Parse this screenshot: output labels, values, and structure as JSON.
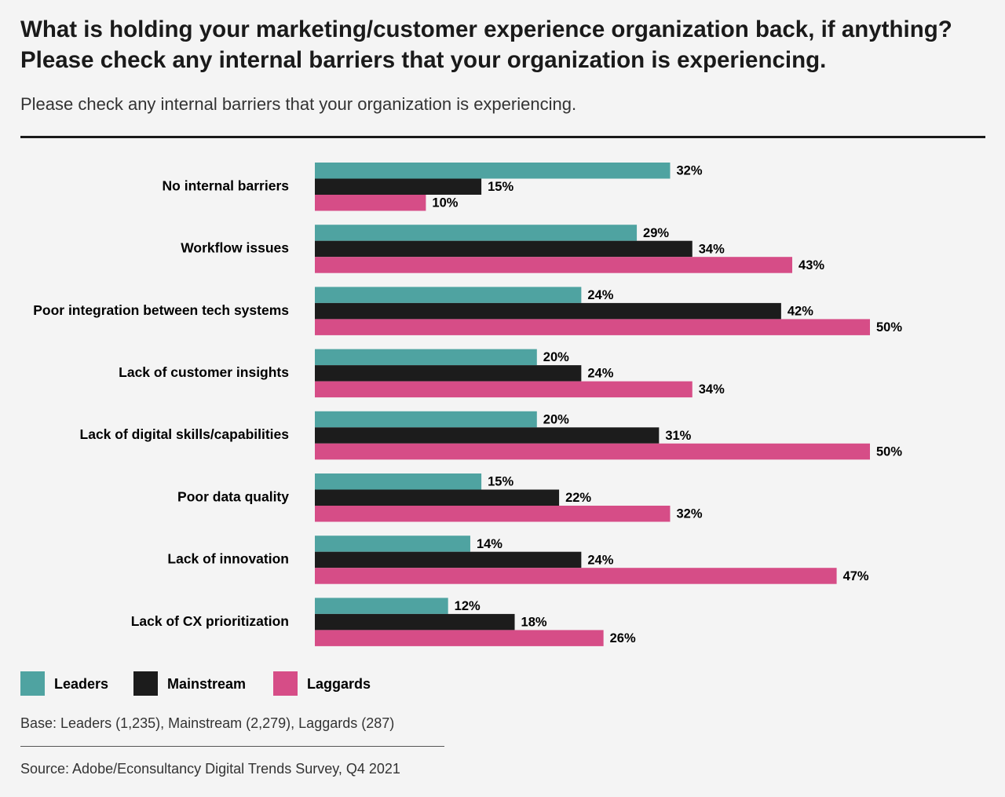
{
  "chart_data": {
    "type": "bar",
    "orientation": "horizontal",
    "title": "What is holding your marketing/customer experience organization back, if anything? Please check any internal barriers that your organization is experiencing.",
    "subtitle": "Please check any internal barriers that your organization is experiencing.",
    "categories": [
      "No internal barriers",
      "Workflow issues",
      "Poor integration between tech systems",
      "Lack of customer insights",
      "Lack of digital skills/capabilities",
      "Poor data quality",
      "Lack of innovation",
      "Lack of CX prioritization"
    ],
    "series": [
      {
        "name": "Leaders",
        "color": "#4fa3a1",
        "values": [
          32,
          29,
          24,
          20,
          20,
          15,
          14,
          12
        ],
        "value_labels": [
          "32%",
          "29%",
          "24%",
          "20%",
          "20%",
          "15%",
          "14%",
          "12%"
        ]
      },
      {
        "name": "Mainstream",
        "color": "#1c1c1c",
        "values": [
          15,
          34,
          42,
          24,
          31,
          22,
          24,
          18
        ],
        "value_labels": [
          "15%",
          "34%",
          "42%",
          "24%",
          "31%",
          "22%",
          "24%",
          "18%"
        ]
      },
      {
        "name": "Laggards",
        "color": "#d64d87",
        "values": [
          10,
          43,
          50,
          34,
          50,
          32,
          47,
          26
        ],
        "value_labels": [
          "10%",
          "43%",
          "50%",
          "34%",
          "50%",
          "32%",
          "47%",
          "26%"
        ]
      }
    ],
    "base_note": "Base: Leaders (1,235), Mainstream (2,279), Laggards (287)",
    "source": "Source: Adobe/Econsultancy Digital Trends Survey, Q4 2021"
  }
}
